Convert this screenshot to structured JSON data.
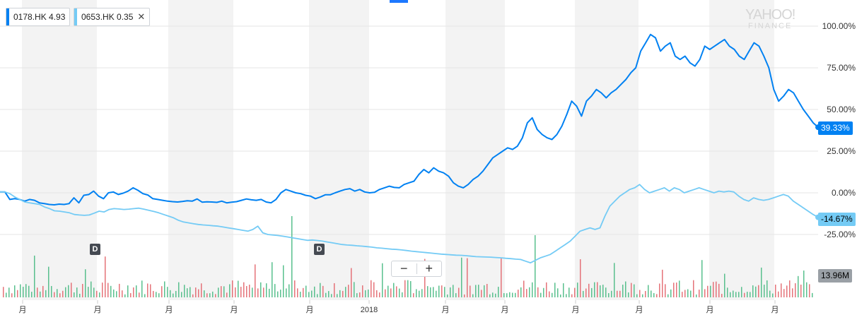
{
  "legend": [
    {
      "symbol": "0178.HK",
      "value": "4.93",
      "color": "#0081f2"
    },
    {
      "symbol": "0653.HK",
      "value": "0.35",
      "color": "#74cbf5",
      "close": "✕"
    }
  ],
  "watermark": {
    "line1": "YAHOO!",
    "line2": "FINANCE"
  },
  "zoom": {
    "minus": "−",
    "plus": "+"
  },
  "flags": {
    "s1": "39.33%",
    "s2": "-14.67%",
    "volume": "13.96M"
  },
  "dividend_marker": "D",
  "chart_data": {
    "type": "line",
    "y_axis": {
      "format": "percent",
      "ticks": [
        100,
        75,
        50,
        25,
        0,
        -25
      ],
      "range": [
        -29,
        112
      ]
    },
    "x_ticks": [
      "月",
      "月",
      "月",
      "月",
      "月",
      "2018",
      "月",
      "月",
      "月",
      "月",
      "月",
      "月",
      "月"
    ],
    "grid": "horizontal, alternating vertical bands",
    "series": [
      {
        "name": "0178.HK",
        "color": "#0081f2",
        "last": 39.33,
        "values": [
          0.5,
          0.5,
          -4,
          -3.5,
          -4,
          -5,
          -4,
          -4.5,
          -6,
          -6.5,
          -7,
          -7.2,
          -6.8,
          -7,
          -6.5,
          -3,
          -6,
          -1.5,
          -1,
          1,
          -2,
          -3.5,
          0,
          0.5,
          -1,
          -0.2,
          1,
          3,
          1.5,
          -0.5,
          -1.3,
          -3.5,
          -4,
          -4.5,
          -5,
          -5.3,
          -5.5,
          -5.2,
          -4.8,
          -5,
          -3.7,
          -5.6,
          -5.4,
          -5.5,
          -5.7,
          -5,
          -6,
          -5.6,
          -5.3,
          -4.5,
          -3.7,
          -4.2,
          -4.5,
          -4,
          -5.5,
          -6,
          -4,
          0,
          2,
          1,
          0,
          -0.5,
          -1.5,
          -2,
          -3.5,
          -2.5,
          -1.2,
          -1.2,
          0,
          1,
          2,
          2.5,
          1,
          2,
          0.5,
          0,
          0.3,
          2,
          3,
          4,
          3.2,
          3,
          5,
          6,
          7,
          11,
          14,
          12,
          15,
          13,
          12,
          10,
          6,
          4,
          3,
          5,
          8,
          10,
          13,
          17,
          21,
          23,
          25,
          27,
          26,
          28,
          33,
          42,
          45,
          38,
          35,
          33,
          32,
          35,
          40,
          47,
          55,
          52,
          46,
          55,
          58,
          62,
          60,
          57,
          60,
          62,
          65,
          68,
          72,
          75,
          85,
          90,
          95,
          93,
          85,
          88,
          90,
          82,
          80,
          82,
          78,
          76,
          80,
          88,
          86,
          88,
          90,
          92,
          88,
          86,
          82,
          80,
          85,
          90,
          88,
          82,
          75,
          62,
          55,
          58,
          62,
          60,
          55,
          50,
          46,
          42,
          39.33
        ]
      },
      {
        "name": "0653.HK",
        "color": "#74cbf5",
        "last": -14.67,
        "values": [
          0.5,
          0.5,
          -0.5,
          -2.5,
          -4,
          -5.5,
          -6,
          -6.5,
          -7,
          -8.5,
          -9.5,
          -10.8,
          -11,
          -11.5,
          -12,
          -13,
          -13.3,
          -13.5,
          -13.3,
          -12.2,
          -11,
          -11.5,
          -10,
          -9.5,
          -9.7,
          -10,
          -9.8,
          -9.5,
          -9.2,
          -9.8,
          -10.5,
          -11.2,
          -12,
          -13,
          -14,
          -15,
          -16.5,
          -17.5,
          -18,
          -18.5,
          -19,
          -19.3,
          -19.5,
          -19.8,
          -20,
          -20.5,
          -21,
          -21.5,
          -22,
          -22.5,
          -23,
          -22,
          -20,
          -24,
          -25,
          -25.3,
          -25.6,
          -26,
          -26.5,
          -27,
          -27.5,
          -28,
          -28.5,
          -28.3,
          -28.6,
          -29,
          -29.5,
          -30,
          -30.5,
          -31,
          -31.3,
          -31.5,
          -31.8,
          -32,
          -32.3,
          -32.6,
          -33,
          -33.2,
          -33.5,
          -33.8,
          -34,
          -34.3,
          -34.6,
          -35,
          -35.3,
          -35.6,
          -35.9,
          -36.2,
          -36.5,
          -36.8,
          -37,
          -37.2,
          -37.4,
          -37.5,
          -37.7,
          -38,
          -38.3,
          -38.4,
          -38.5,
          -38.6,
          -38.8,
          -39,
          -39.3,
          -39.5,
          -39.8,
          -40,
          -41,
          -42,
          -40.5,
          -39,
          -38,
          -37,
          -35,
          -33,
          -31,
          -29,
          -26,
          -23,
          -22,
          -21,
          -22,
          -21,
          -14,
          -8,
          -5,
          -2,
          0,
          2,
          3,
          5,
          2,
          0,
          1,
          2,
          3,
          1,
          3,
          2,
          0,
          1,
          2,
          3,
          2,
          1,
          0,
          1,
          0.5,
          1,
          0.5,
          -2,
          -4,
          -5,
          -3,
          -4,
          -4.5,
          -4,
          -3,
          -2,
          -1,
          -2,
          -5,
          -7,
          -9,
          -11,
          -13,
          -14.67
        ]
      }
    ],
    "volume": {
      "last_label": "13.96M"
    }
  }
}
